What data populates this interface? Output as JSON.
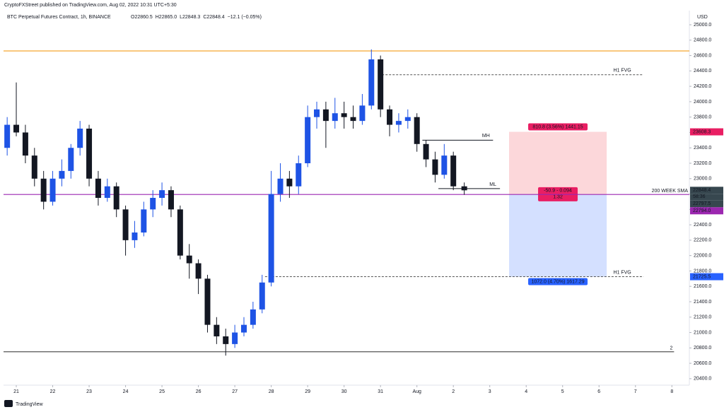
{
  "header": {
    "published": "CryptoFXStreet published on TradingView.com, Aug 02, 2022 10:31 UTC+5:30",
    "logo": "TradingView"
  },
  "chart_data": {
    "type": "candlestick",
    "title": "BTC Perpetual Futures Contract, 1h, BINANCE",
    "ohlc_legend": [
      "O22860.5",
      "H22865.0",
      "L22848.3",
      "C22848.4",
      "−12.1 (−0.05%)"
    ],
    "currency": "USD",
    "up_color": "#1e53e5",
    "down_color": "#131722",
    "x": [
      -0.25,
      0,
      0.25,
      0.5,
      0.75,
      1,
      1.25,
      1.5,
      1.75,
      2,
      2.25,
      2.5,
      2.75,
      3,
      3.25,
      3.5,
      3.75,
      4,
      4.25,
      4.5,
      4.75,
      5,
      5.25,
      5.5,
      5.75,
      6,
      6.25,
      6.5,
      6.75,
      7,
      7.25,
      7.5,
      7.75,
      8,
      8.25,
      8.5,
      8.75,
      9,
      9.25,
      9.5,
      9.75,
      10,
      10.25,
      10.5,
      10.75,
      11,
      11.25,
      11.5,
      11.75,
      12,
      12.3
    ],
    "open": [
      23400,
      23700,
      23600,
      23300,
      23000,
      22700,
      23000,
      23100,
      23400,
      23650,
      23000,
      22750,
      22900,
      22600,
      22200,
      22300,
      22600,
      22750,
      22850,
      22600,
      22000,
      21900,
      21700,
      21100,
      20950,
      20850,
      21000,
      21100,
      21300,
      21650,
      22800,
      23000,
      22900,
      23200,
      23800,
      23900,
      23750,
      23850,
      23800,
      23750,
      23950,
      24550,
      23900,
      23700,
      23750,
      23800,
      23450,
      23250,
      23050,
      23300,
      22900
    ],
    "high": [
      23800,
      24250,
      23700,
      23400,
      23100,
      23100,
      23250,
      23450,
      23750,
      23700,
      23100,
      23000,
      22950,
      22650,
      22450,
      22700,
      22850,
      22950,
      22900,
      22650,
      22150,
      21950,
      21750,
      21200,
      21050,
      21100,
      21200,
      21400,
      21750,
      23100,
      23200,
      23100,
      23300,
      23950,
      24000,
      24000,
      24050,
      24000,
      23950,
      24100,
      24680,
      24600,
      23950,
      23850,
      23900,
      23850,
      23500,
      23350,
      23450,
      23350,
      22950
    ],
    "low": [
      23300,
      23550,
      23200,
      22900,
      22600,
      22650,
      22900,
      23000,
      23300,
      22900,
      22650,
      22700,
      22500,
      22000,
      22100,
      22250,
      22500,
      22650,
      22500,
      21950,
      21700,
      21500,
      21000,
      20850,
      20700,
      20800,
      20950,
      21050,
      21250,
      21600,
      22700,
      22750,
      22800,
      23150,
      23650,
      23400,
      23650,
      23650,
      23650,
      23700,
      23900,
      23800,
      23550,
      23600,
      23650,
      23350,
      23150,
      22950,
      23000,
      22850,
      22790
    ],
    "close": [
      23700,
      23600,
      23300,
      23000,
      22700,
      23000,
      23100,
      23400,
      23650,
      23000,
      22750,
      22900,
      22600,
      22200,
      22300,
      22600,
      22750,
      22850,
      22600,
      22000,
      21900,
      21700,
      21100,
      20950,
      20850,
      21000,
      21100,
      21300,
      21650,
      22800,
      23000,
      22900,
      23200,
      23800,
      23900,
      23750,
      23850,
      23800,
      23750,
      23950,
      24550,
      23900,
      23700,
      23750,
      23800,
      23450,
      23250,
      23050,
      23300,
      22900,
      22848.4
    ],
    "xlim": [
      -0.35,
      18.48
    ],
    "xticks": [
      {
        "value": 0,
        "label": "21"
      },
      {
        "value": 1,
        "label": "22"
      },
      {
        "value": 2,
        "label": "23"
      },
      {
        "value": 3,
        "label": "24"
      },
      {
        "value": 4,
        "label": "25"
      },
      {
        "value": 5,
        "label": "26"
      },
      {
        "value": 6,
        "label": "27"
      },
      {
        "value": 7,
        "label": "28"
      },
      {
        "value": 8,
        "label": "29"
      },
      {
        "value": 9,
        "label": "30"
      },
      {
        "value": 10,
        "label": "31"
      },
      {
        "value": 11,
        "label": "Aug"
      },
      {
        "value": 12,
        "label": "2"
      },
      {
        "value": 13,
        "label": "3"
      },
      {
        "value": 14,
        "label": "4"
      },
      {
        "value": 15,
        "label": "5"
      },
      {
        "value": 16,
        "label": "6"
      },
      {
        "value": 17,
        "label": "7"
      },
      {
        "value": 18,
        "label": "8"
      }
    ],
    "ylim": [
      20316,
      25184
    ],
    "yticks": [
      {
        "value": 20400,
        "label": "20400.0"
      },
      {
        "value": 20600,
        "label": "20600.0"
      },
      {
        "value": 20800,
        "label": "20800.0"
      },
      {
        "value": 21000,
        "label": "21000.0"
      },
      {
        "value": 21200,
        "label": "21200.0"
      },
      {
        "value": 21400,
        "label": "21400.0"
      },
      {
        "value": 21600,
        "label": "21600.0"
      },
      {
        "value": 21800,
        "label": "21800.0"
      },
      {
        "value": 22000,
        "label": "22000.0"
      },
      {
        "value": 22200,
        "label": "22200.0"
      },
      {
        "value": 22400,
        "label": "22400.0"
      },
      {
        "value": 22600,
        "label": "22600.0"
      },
      {
        "value": 22800,
        "label": "22800.0"
      },
      {
        "value": 23000,
        "label": "23000.0"
      },
      {
        "value": 23200,
        "label": "23200.0"
      },
      {
        "value": 23400,
        "label": "23400.0"
      },
      {
        "value": 23600,
        "label": "23600.0"
      },
      {
        "value": 23800,
        "label": "23800.0"
      },
      {
        "value": 24000,
        "label": "24000.0"
      },
      {
        "value": 24200,
        "label": "24200.0"
      },
      {
        "value": 24400,
        "label": "24400.0"
      },
      {
        "value": 24600,
        "label": "24600.0"
      },
      {
        "value": 24800,
        "label": "24800.0"
      },
      {
        "value": 25000,
        "label": "25000.0"
      }
    ],
    "levels": [
      {
        "value": 24660,
        "color": "#f59c1a"
      },
      {
        "value": 20750,
        "color": "#555555",
        "x_end": 18.06,
        "label": "2"
      },
      {
        "value": 22794,
        "color": "#9c27b0",
        "label": "200 WEEK SMA"
      }
    ],
    "zones": [
      {
        "value": 24350,
        "x": [
          10.04,
          17.22
        ],
        "label": "H1 FVG",
        "color": "#4caf50"
      },
      {
        "value": 21725.5,
        "x": [
          6.83,
          17.22
        ],
        "label": "H1 FVG",
        "color": "#4caf50"
      }
    ],
    "marks": [
      {
        "value": 23500,
        "x": [
          11.15,
          13.09
        ],
        "label": "MH",
        "color": "#00bcd4"
      },
      {
        "value": 22870,
        "x": [
          11.59,
          13.28
        ],
        "label": "ML",
        "color": "#00bcd4"
      }
    ],
    "position": {
      "x": [
        13.53,
        16.21
      ],
      "stop": 23608.3,
      "entry": 22797.5,
      "target": 21725.5,
      "stop_label": "810.8 (3.56%) 1441.15",
      "entry_label": "-50.9 - 0.094",
      "ratio_label": "1.32",
      "target_label": "1072.0 (4.70%) 1617.29"
    },
    "price_tags": [
      {
        "value": 23608.3,
        "color": "#e91e63"
      },
      {
        "value": 22848.4,
        "color": "#37474f",
        "timer": "58:36"
      },
      {
        "value": 22797.5,
        "color": "#37474f"
      },
      {
        "value": 22794,
        "label": "22794.0",
        "color": "#9c27b0"
      },
      {
        "value": 21725.5,
        "color": "#2962ff"
      }
    ]
  }
}
